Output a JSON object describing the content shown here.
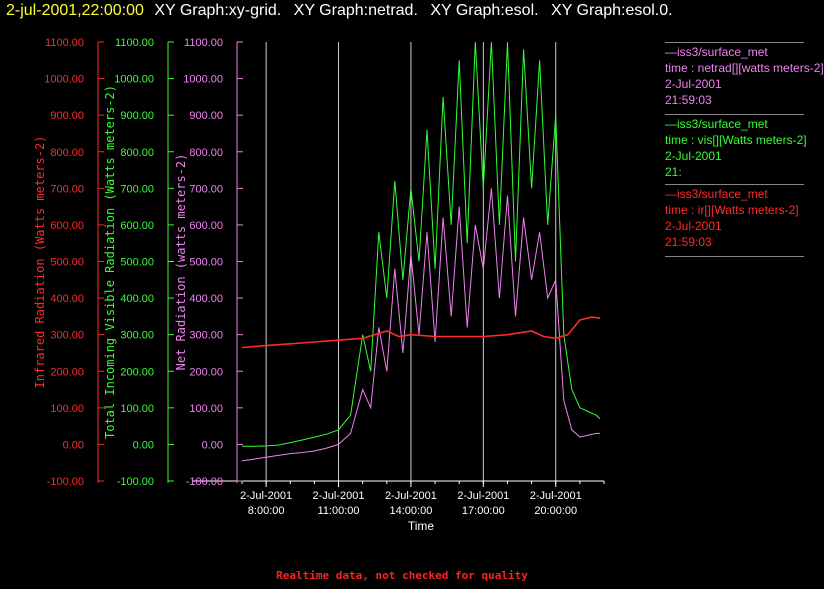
{
  "header": {
    "time": "2-jul-2001,22:00:00",
    "items": [
      "XY Graph:xy-grid.",
      "XY Graph:netrad.",
      "XY Graph:esol.",
      "XY Graph:esol.0."
    ]
  },
  "footer": "Realtime data, not checked for quality",
  "legend": [
    {
      "color": "#ee82ee",
      "lines": [
        "—iss3/surface_met",
        "time : netrad[][watts meters-2]",
        "2-Jul-2001",
        "21:59:03"
      ]
    },
    {
      "color": "#33ff33",
      "lines": [
        "—iss3/surface_met",
        "time : vis[][Watts meters-2]",
        "2-Jul-2001",
        "21:"
      ]
    },
    {
      "color": "#ff2a2a",
      "lines": [
        "—iss3/surface_met",
        "time : ir[][Watts meters-2]",
        "2-Jul-2001",
        "21:59:03"
      ]
    }
  ],
  "chart_data": {
    "type": "line",
    "xlabel": "Time",
    "xlim": [
      "2-Jul-2001 07:00:00",
      "2-Jul-2001 22:00:00"
    ],
    "x_ticks": [
      {
        "date": "2-Jul-2001",
        "time": "8:00:00"
      },
      {
        "date": "2-Jul-2001",
        "time": "11:00:00"
      },
      {
        "date": "2-Jul-2001",
        "time": "14:00:00"
      },
      {
        "date": "2-Jul-2001",
        "time": "17:00:00"
      },
      {
        "date": "2-Jul-2001",
        "time": "20:00:00"
      }
    ],
    "grid": "vertical at major x ticks",
    "legend_position": "right",
    "y_axes": [
      {
        "label": "Infrared Radiation (Watts meters-2)",
        "color": "#ff2a2a",
        "ylim": [
          -100,
          1100
        ],
        "series": "ir"
      },
      {
        "label": "Total Incoming Visible Radiation (Watts meters-2)",
        "color": "#33ff33",
        "ylim": [
          -100,
          1100
        ],
        "series": "vis"
      },
      {
        "label": "Net Radiation (watts meters-2)",
        "color": "#ee82ee",
        "ylim": [
          -100,
          1100
        ],
        "series": "netrad"
      }
    ],
    "y_ticks": [
      "-100.00",
      "0.00",
      "100.00",
      "200.00",
      "300.00",
      "400.00",
      "500.00",
      "600.00",
      "700.00",
      "800.00",
      "900.00",
      "1000.00",
      "1100.00"
    ],
    "series": [
      {
        "name": "iss3/surface_met time : vis[][Watts meters-2]",
        "key": "vis",
        "color": "#33ff33",
        "x": [
          "07:00",
          "07:30",
          "08:00",
          "08:30",
          "09:00",
          "09:30",
          "10:00",
          "10:30",
          "11:00",
          "11:30",
          "12:00",
          "12:20",
          "12:40",
          "13:00",
          "13:20",
          "13:40",
          "14:00",
          "14:20",
          "14:40",
          "15:00",
          "15:20",
          "15:40",
          "16:00",
          "16:20",
          "16:40",
          "17:00",
          "17:20",
          "17:40",
          "18:00",
          "18:20",
          "18:40",
          "19:00",
          "19:20",
          "19:40",
          "20:00",
          "20:20",
          "20:40",
          "21:00",
          "21:20",
          "21:40",
          "21:50"
        ],
        "y": [
          -5,
          -5,
          -4,
          -2,
          5,
          12,
          20,
          28,
          40,
          80,
          300,
          200,
          580,
          400,
          720,
          450,
          700,
          500,
          860,
          480,
          950,
          600,
          1050,
          550,
          1100,
          700,
          1100,
          600,
          1100,
          500,
          1080,
          700,
          1050,
          600,
          900,
          300,
          150,
          100,
          90,
          80,
          70
        ]
      },
      {
        "name": "iss3/surface_met time : netrad[][watts meters-2]",
        "key": "netrad",
        "color": "#ee82ee",
        "x": [
          "07:00",
          "07:30",
          "08:00",
          "08:30",
          "09:00",
          "09:30",
          "10:00",
          "10:30",
          "11:00",
          "11:30",
          "12:00",
          "12:20",
          "12:40",
          "13:00",
          "13:20",
          "13:40",
          "14:00",
          "14:20",
          "14:40",
          "15:00",
          "15:20",
          "15:40",
          "16:00",
          "16:20",
          "16:40",
          "17:00",
          "17:20",
          "17:40",
          "18:00",
          "18:20",
          "18:40",
          "19:00",
          "19:20",
          "19:40",
          "20:00",
          "20:20",
          "20:40",
          "21:00",
          "21:20",
          "21:40",
          "21:50"
        ],
        "y": [
          -45,
          -40,
          -35,
          -30,
          -25,
          -22,
          -18,
          -10,
          0,
          30,
          150,
          100,
          320,
          200,
          480,
          250,
          520,
          300,
          580,
          280,
          620,
          350,
          650,
          320,
          600,
          480,
          700,
          400,
          680,
          350,
          620,
          450,
          580,
          400,
          450,
          120,
          40,
          20,
          25,
          30,
          30
        ]
      },
      {
        "name": "iss3/surface_met time : ir[][Watts meters-2]",
        "key": "ir",
        "color": "#ff2a2a",
        "x": [
          "07:00",
          "08:00",
          "09:00",
          "10:00",
          "11:00",
          "12:00",
          "12:30",
          "13:00",
          "13:30",
          "14:00",
          "15:00",
          "16:00",
          "17:00",
          "18:00",
          "18:30",
          "19:00",
          "19:30",
          "20:00",
          "20:30",
          "21:00",
          "21:30",
          "21:50"
        ],
        "y": [
          265,
          270,
          275,
          280,
          285,
          290,
          300,
          310,
          295,
          300,
          295,
          295,
          295,
          300,
          305,
          310,
          295,
          290,
          300,
          340,
          348,
          345
        ]
      }
    ]
  }
}
